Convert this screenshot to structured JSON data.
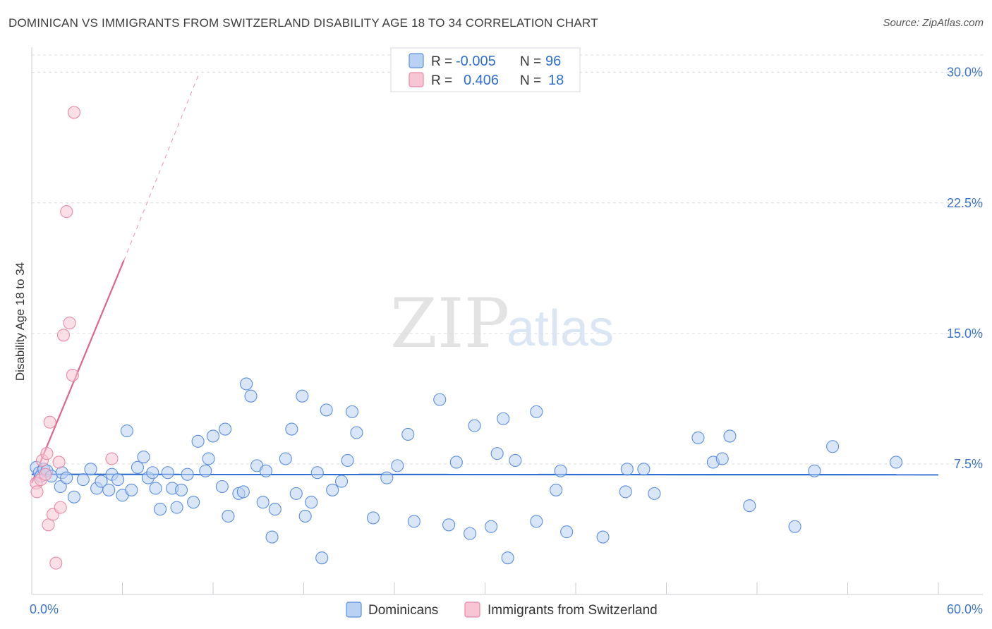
{
  "header": {
    "title": "DOMINICAN VS IMMIGRANTS FROM SWITZERLAND DISABILITY AGE 18 TO 34 CORRELATION CHART",
    "source": "Source: ZipAtlas.com"
  },
  "watermark": {
    "zip": "ZIP",
    "atlas": "atlas"
  },
  "colors": {
    "blue": "#5b8fde",
    "blue_fill": "#b9d1f3",
    "blue_line": "#2f6fd1",
    "pink": "#e88aa8",
    "pink_fill": "#f7c5d4",
    "pink_line": "#e0648e",
    "grid": "#d9dde3",
    "axis_text": "#3b74c9"
  },
  "legend": {
    "rows": [
      {
        "r_label": "R =",
        "r_value": "-0.005",
        "n_label": "N =",
        "n_value": "96"
      },
      {
        "r_label": "R =",
        "r_value": "0.406",
        "n_label": "N =",
        "n_value": "18"
      }
    ]
  },
  "bottom_legend": {
    "items": [
      {
        "label": "Dominicans"
      },
      {
        "label": "Immigrants from Switzerland"
      }
    ]
  },
  "chart_data": {
    "type": "scatter",
    "title": "DOMINICAN VS IMMIGRANTS FROM SWITZERLAND DISABILITY AGE 18 TO 34 CORRELATION CHART",
    "xlabel": "",
    "ylabel": "Disability Age 18 to 34",
    "xlim": [
      0,
      60
    ],
    "ylim": [
      0,
      31
    ],
    "x_tick_labels": [
      "0.0%",
      "60.0%"
    ],
    "y_ticks": [
      7.5,
      15.0,
      22.5,
      30.0
    ],
    "y_tick_labels": [
      "7.5%",
      "15.0%",
      "22.5%",
      "30.0%"
    ],
    "series": [
      {
        "name": "Dominicans",
        "r": -0.005,
        "n": 96,
        "trend": {
          "x": [
            0,
            60
          ],
          "y": [
            6.9,
            6.88
          ]
        },
        "points": [
          [
            0.3,
            7.3
          ],
          [
            0.5,
            7.0
          ],
          [
            0.6,
            6.8
          ],
          [
            0.8,
            7.2
          ],
          [
            1.0,
            7.1
          ],
          [
            1.3,
            6.8
          ],
          [
            1.9,
            6.2
          ],
          [
            2.0,
            7.0
          ],
          [
            2.3,
            6.7
          ],
          [
            2.8,
            5.6
          ],
          [
            3.4,
            6.6
          ],
          [
            3.9,
            7.2
          ],
          [
            4.3,
            6.1
          ],
          [
            4.6,
            6.5
          ],
          [
            5.1,
            6.0
          ],
          [
            5.3,
            6.9
          ],
          [
            5.7,
            6.6
          ],
          [
            6.0,
            5.7
          ],
          [
            6.3,
            9.4
          ],
          [
            6.6,
            6.0
          ],
          [
            7.0,
            7.3
          ],
          [
            7.4,
            7.9
          ],
          [
            7.7,
            6.7
          ],
          [
            8.0,
            7.0
          ],
          [
            8.2,
            6.1
          ],
          [
            8.5,
            4.9
          ],
          [
            9.0,
            7.0
          ],
          [
            9.3,
            6.1
          ],
          [
            9.6,
            5.0
          ],
          [
            9.9,
            6.0
          ],
          [
            10.3,
            6.9
          ],
          [
            10.7,
            5.3
          ],
          [
            11.0,
            8.8
          ],
          [
            11.5,
            7.1
          ],
          [
            11.7,
            7.8
          ],
          [
            12.0,
            9.1
          ],
          [
            12.6,
            6.2
          ],
          [
            12.8,
            9.5
          ],
          [
            13.0,
            4.5
          ],
          [
            13.7,
            5.8
          ],
          [
            14.0,
            5.9
          ],
          [
            14.2,
            12.1
          ],
          [
            14.5,
            11.4
          ],
          [
            14.9,
            7.4
          ],
          [
            15.3,
            5.3
          ],
          [
            15.5,
            7.1
          ],
          [
            15.9,
            3.3
          ],
          [
            16.1,
            4.9
          ],
          [
            16.8,
            7.8
          ],
          [
            17.2,
            9.5
          ],
          [
            17.5,
            5.8
          ],
          [
            17.9,
            11.4
          ],
          [
            18.1,
            4.5
          ],
          [
            18.5,
            5.3
          ],
          [
            18.9,
            7.0
          ],
          [
            19.2,
            2.1
          ],
          [
            19.5,
            10.6
          ],
          [
            19.9,
            6.0
          ],
          [
            20.5,
            6.5
          ],
          [
            20.9,
            7.7
          ],
          [
            21.2,
            10.5
          ],
          [
            21.5,
            9.3
          ],
          [
            22.6,
            4.4
          ],
          [
            23.5,
            6.7
          ],
          [
            24.2,
            7.4
          ],
          [
            24.9,
            9.2
          ],
          [
            25.3,
            4.2
          ],
          [
            27.0,
            11.2
          ],
          [
            27.6,
            4.0
          ],
          [
            28.1,
            7.6
          ],
          [
            29.0,
            3.5
          ],
          [
            29.3,
            9.7
          ],
          [
            30.4,
            3.9
          ],
          [
            30.8,
            8.1
          ],
          [
            31.2,
            10.1
          ],
          [
            31.5,
            2.1
          ],
          [
            32.0,
            7.7
          ],
          [
            33.4,
            10.5
          ],
          [
            33.4,
            4.2
          ],
          [
            34.7,
            6.0
          ],
          [
            35.0,
            7.1
          ],
          [
            35.4,
            3.6
          ],
          [
            37.8,
            3.3
          ],
          [
            39.3,
            5.9
          ],
          [
            39.4,
            7.2
          ],
          [
            40.5,
            7.2
          ],
          [
            41.2,
            5.8
          ],
          [
            44.1,
            9.0
          ],
          [
            45.1,
            7.6
          ],
          [
            45.7,
            7.8
          ],
          [
            46.2,
            9.1
          ],
          [
            47.5,
            5.1
          ],
          [
            50.5,
            3.9
          ],
          [
            51.8,
            7.1
          ],
          [
            53.0,
            8.5
          ],
          [
            57.2,
            7.6
          ]
        ]
      },
      {
        "name": "Immigrants from Switzerland",
        "r": 0.406,
        "n": 18,
        "trend": {
          "x": [
            0,
            6.1
          ],
          "y": [
            6.4,
            19.2
          ]
        },
        "trend_extension": {
          "x": [
            6.1,
            11.1
          ],
          "y": [
            19.2,
            30.0
          ]
        },
        "points": [
          [
            0.3,
            6.4
          ],
          [
            0.35,
            5.9
          ],
          [
            0.6,
            6.6
          ],
          [
            0.7,
            7.7
          ],
          [
            0.9,
            6.9
          ],
          [
            1.0,
            8.1
          ],
          [
            1.1,
            4.0
          ],
          [
            1.2,
            9.9
          ],
          [
            1.4,
            4.6
          ],
          [
            1.6,
            1.8
          ],
          [
            1.8,
            7.6
          ],
          [
            1.9,
            5.0
          ],
          [
            2.1,
            14.9
          ],
          [
            2.3,
            22.0
          ],
          [
            2.5,
            15.6
          ],
          [
            2.7,
            12.6
          ],
          [
            2.8,
            27.7
          ],
          [
            5.3,
            7.8
          ]
        ]
      }
    ]
  }
}
